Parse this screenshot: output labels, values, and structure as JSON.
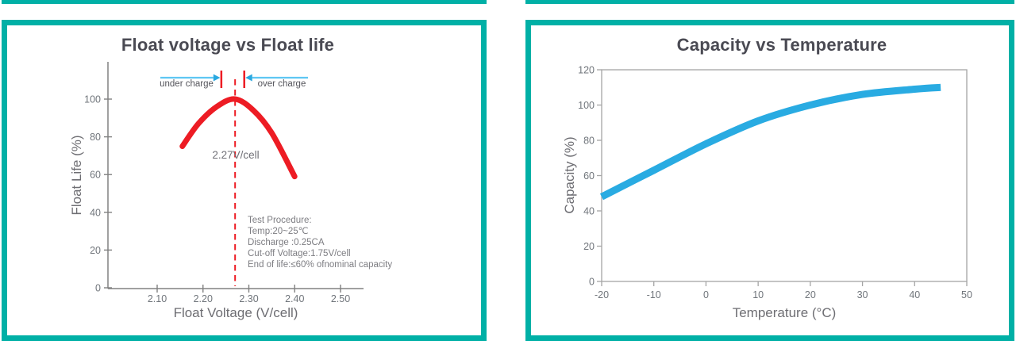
{
  "page": {
    "background": "#ffffff",
    "accent_color": "#00b0a6"
  },
  "chart_data": [
    {
      "id": "float-voltage-vs-float-life",
      "type": "line",
      "title": "Float voltage vs Float life",
      "xlabel": "Float Voltage (V/cell)",
      "ylabel": "Float Life (%)",
      "x_ticks": [
        2.1,
        2.2,
        2.3,
        2.4,
        2.5
      ],
      "x_tick_labels": [
        "2.10",
        "2.20",
        "2.30",
        "2.40",
        "2.50"
      ],
      "y_ticks": [
        0,
        20,
        40,
        60,
        80,
        100
      ],
      "xlim": [
        1.99,
        2.55
      ],
      "ylim": [
        0,
        120
      ],
      "grid": false,
      "legend": null,
      "series": [
        {
          "name": "Float life",
          "color": "#ed1c24",
          "x": [
            2.155,
            2.19,
            2.23,
            2.27,
            2.31,
            2.35,
            2.4
          ],
          "y": [
            75,
            87,
            96,
            100,
            94,
            82,
            59
          ]
        }
      ],
      "peak": {
        "x": 2.27,
        "label": "2.27V/cell",
        "line_color": "#ed1c24"
      },
      "optimal_range": {
        "from": 2.24,
        "to": 2.29,
        "under_label": "under charge",
        "over_label": "over charge",
        "marker_color": "#ed1c24",
        "arrow_color": "#29a8e0",
        "line_color": "#5ec7f3"
      },
      "notes": [
        "Test Procedure:",
        "Temp:20~25℃",
        "Discharge :0.25CA",
        "Cut-off Voltage:1.75V/cell",
        "End of life:≤60% ofnominal capacity"
      ]
    },
    {
      "id": "capacity-vs-temperature",
      "type": "line",
      "title": "Capacity vs Temperature",
      "xlabel": "Temperature (°C)",
      "ylabel": "Capacity (%)",
      "x_ticks": [
        -20,
        -10,
        0,
        10,
        20,
        30,
        40,
        50
      ],
      "x_tick_labels": [
        "-20",
        "-10",
        "0",
        "10",
        "20",
        "30",
        "40",
        "50"
      ],
      "y_ticks": [
        0,
        20,
        40,
        60,
        80,
        100,
        120
      ],
      "xlim": [
        -20,
        50
      ],
      "ylim": [
        0,
        120
      ],
      "grid": false,
      "legend": null,
      "series": [
        {
          "name": "Capacity",
          "color": "#29abe2",
          "x": [
            -20,
            -10,
            0,
            10,
            20,
            30,
            40,
            45
          ],
          "y": [
            48,
            63,
            78,
            91,
            100,
            106,
            109,
            110
          ]
        }
      ]
    }
  ]
}
